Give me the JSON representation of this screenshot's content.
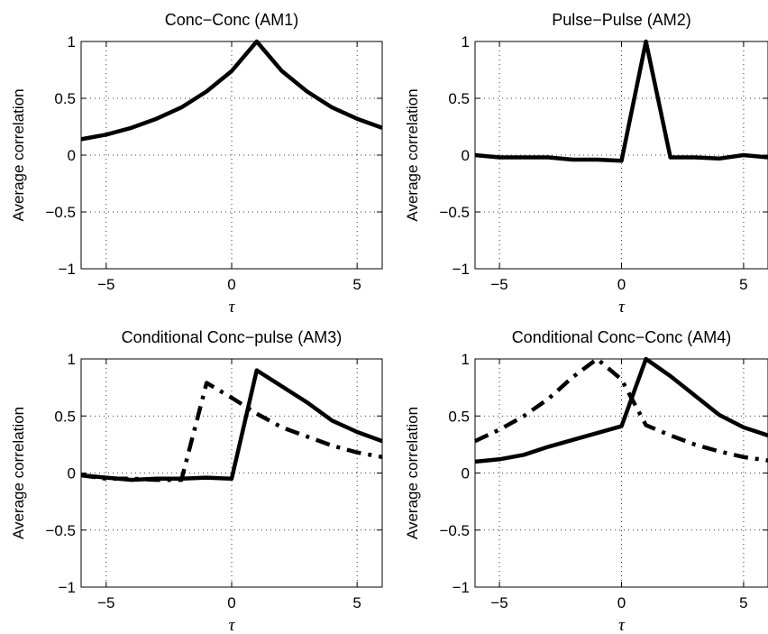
{
  "chart_data": [
    {
      "type": "line",
      "title": "Conc−Conc (AM1)",
      "xlabel": "τ",
      "ylabel": "Average correlation",
      "xlim": [
        -6,
        6
      ],
      "ylim": [
        -1,
        1
      ],
      "xticks": [
        -5,
        0,
        5
      ],
      "yticks": [
        -1,
        -0.5,
        0,
        0.5,
        1
      ],
      "x_tick_labels": [
        "−5",
        "0",
        "5"
      ],
      "y_tick_labels": [
        "−1",
        "−0.5",
        "0",
        "0.5",
        "1"
      ],
      "grid": true,
      "series": [
        {
          "style": "solid",
          "x": [
            -6,
            -5,
            -4,
            -3,
            -2,
            -1,
            0,
            1,
            2,
            3,
            4,
            5,
            6
          ],
          "values": [
            0.14,
            0.18,
            0.24,
            0.32,
            0.42,
            0.56,
            0.74,
            1.0,
            0.74,
            0.56,
            0.42,
            0.32,
            0.24
          ]
        }
      ]
    },
    {
      "type": "line",
      "title": "Pulse−Pulse (AM2)",
      "xlabel": "τ",
      "ylabel": "Average correlation",
      "xlim": [
        -6,
        6
      ],
      "ylim": [
        -1,
        1
      ],
      "xticks": [
        -5,
        0,
        5
      ],
      "yticks": [
        -1,
        -0.5,
        0,
        0.5,
        1
      ],
      "x_tick_labels": [
        "−5",
        "0",
        "5"
      ],
      "y_tick_labels": [
        "−1",
        "−0.5",
        "0",
        "0.5",
        "1"
      ],
      "grid": true,
      "series": [
        {
          "style": "solid",
          "x": [
            -6,
            -5,
            -4,
            -3,
            -2,
            -1,
            0,
            1,
            2,
            3,
            4,
            5,
            6
          ],
          "values": [
            0.0,
            -0.02,
            -0.02,
            -0.02,
            -0.04,
            -0.04,
            -0.05,
            1.0,
            -0.02,
            -0.02,
            -0.03,
            0.0,
            -0.02
          ]
        }
      ]
    },
    {
      "type": "line",
      "title": "Conditional Conc−pulse (AM3)",
      "xlabel": "τ",
      "ylabel": "Average correlation",
      "xlim": [
        -6,
        6
      ],
      "ylim": [
        -1,
        1
      ],
      "xticks": [
        -5,
        0,
        5
      ],
      "yticks": [
        -1,
        -0.5,
        0,
        0.5,
        1
      ],
      "x_tick_labels": [
        "−5",
        "0",
        "5"
      ],
      "y_tick_labels": [
        "−1",
        "−0.5",
        "0",
        "0.5",
        "1"
      ],
      "grid": true,
      "series": [
        {
          "style": "solid",
          "x": [
            -6,
            -5,
            -4,
            -3,
            -2,
            -1,
            0,
            1,
            2,
            3,
            4,
            5,
            6
          ],
          "values": [
            -0.02,
            -0.04,
            -0.06,
            -0.05,
            -0.05,
            -0.04,
            -0.05,
            0.9,
            0.76,
            0.62,
            0.46,
            0.36,
            0.28
          ]
        },
        {
          "style": "dashdot",
          "x": [
            -6,
            -5,
            -4,
            -3,
            -2,
            -1,
            0,
            1,
            2,
            3,
            4,
            5,
            6
          ],
          "values": [
            -0.02,
            -0.05,
            -0.05,
            -0.06,
            -0.06,
            0.79,
            0.66,
            0.52,
            0.4,
            0.32,
            0.24,
            0.18,
            0.14
          ]
        }
      ]
    },
    {
      "type": "line",
      "title": "Conditional Conc−Conc (AM4)",
      "xlabel": "τ",
      "ylabel": "Average correlation",
      "xlim": [
        -6,
        6
      ],
      "ylim": [
        -1,
        1
      ],
      "xticks": [
        -5,
        0,
        5
      ],
      "yticks": [
        -1,
        -0.5,
        0,
        0.5,
        1
      ],
      "x_tick_labels": [
        "−5",
        "0",
        "5"
      ],
      "y_tick_labels": [
        "−1",
        "−0.5",
        "0",
        "0.5",
        "1"
      ],
      "grid": true,
      "series": [
        {
          "style": "solid",
          "x": [
            -6,
            -5,
            -4,
            -3,
            -2,
            -1,
            0,
            1,
            2,
            3,
            4,
            5,
            6
          ],
          "values": [
            0.1,
            0.12,
            0.16,
            0.23,
            0.29,
            0.35,
            0.41,
            1.0,
            0.85,
            0.68,
            0.51,
            0.4,
            0.33
          ]
        },
        {
          "style": "dashdot",
          "x": [
            -6,
            -5,
            -4,
            -3,
            -2,
            -1,
            0,
            1,
            2,
            3,
            4,
            5,
            6
          ],
          "values": [
            0.28,
            0.38,
            0.5,
            0.65,
            0.84,
            1.0,
            0.82,
            0.42,
            0.33,
            0.25,
            0.19,
            0.14,
            0.11
          ]
        }
      ]
    }
  ]
}
